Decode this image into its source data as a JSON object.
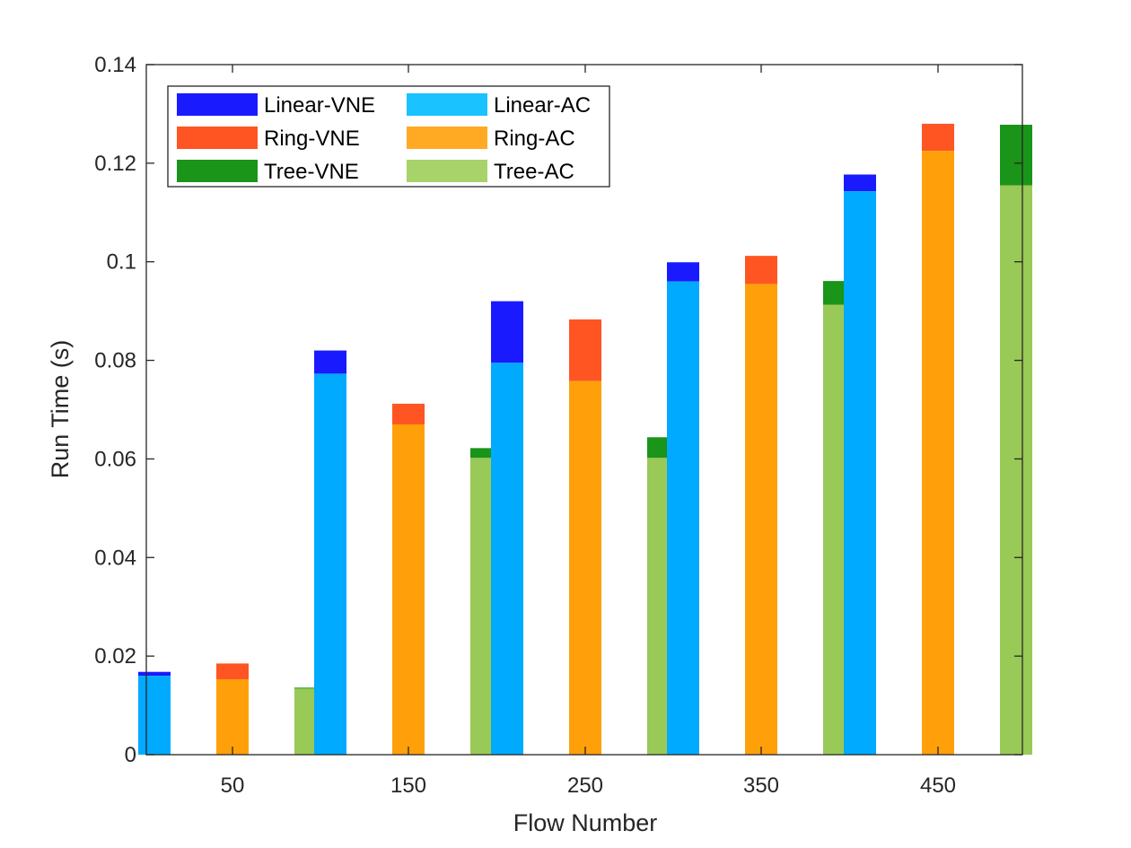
{
  "chart_data": {
    "type": "bar",
    "stacked_overlay": true,
    "xlabel": "Flow Number",
    "ylabel": "Run Time (s)",
    "categories": [
      "50",
      "150",
      "250",
      "350",
      "450"
    ],
    "ylim": [
      0,
      0.14
    ],
    "yticks": [
      "0",
      "0.02",
      "0.04",
      "0.06",
      "0.08",
      "0.1",
      "0.12",
      "0.14"
    ],
    "grid": false,
    "legend_position": "top-left",
    "groups": [
      {
        "name": "Linear",
        "vne": {
          "name": "Linear-VNE",
          "color": "#1a1aff",
          "values": [
            0.0168,
            0.082,
            0.092,
            0.0999,
            0.1177
          ]
        },
        "ac": {
          "name": "Linear-AC",
          "color": "#00aaff",
          "values": [
            0.016,
            0.0773,
            0.0795,
            0.096,
            0.1143
          ]
        }
      },
      {
        "name": "Ring",
        "vne": {
          "name": "Ring-VNE",
          "color": "#ff5522",
          "values": [
            0.0185,
            0.0712,
            0.0883,
            0.1012,
            0.128
          ]
        },
        "ac": {
          "name": "Ring-AC",
          "color": "#ffa00a",
          "values": [
            0.0153,
            0.067,
            0.0758,
            0.0955,
            0.1225
          ]
        }
      },
      {
        "name": "Tree",
        "vne": {
          "name": "Tree-VNE",
          "color": "#1a9419",
          "values": [
            0.0136,
            0.0622,
            0.0644,
            0.0961,
            0.1278
          ]
        },
        "ac": {
          "name": "Tree-AC",
          "color": "#99c957",
          "values": [
            0.0134,
            0.0602,
            0.0602,
            0.0913,
            0.1155
          ]
        }
      }
    ],
    "legend": [
      {
        "label": "Linear-VNE",
        "color": "#1a1aff"
      },
      {
        "label": "Linear-AC",
        "color": "#1ac3ff"
      },
      {
        "label": "Ring-VNE",
        "color": "#ff5522"
      },
      {
        "label": "Ring-AC",
        "color": "#ffaa22"
      },
      {
        "label": "Tree-VNE",
        "color": "#1a9419"
      },
      {
        "label": "Tree-AC",
        "color": "#a8d26a"
      }
    ]
  }
}
